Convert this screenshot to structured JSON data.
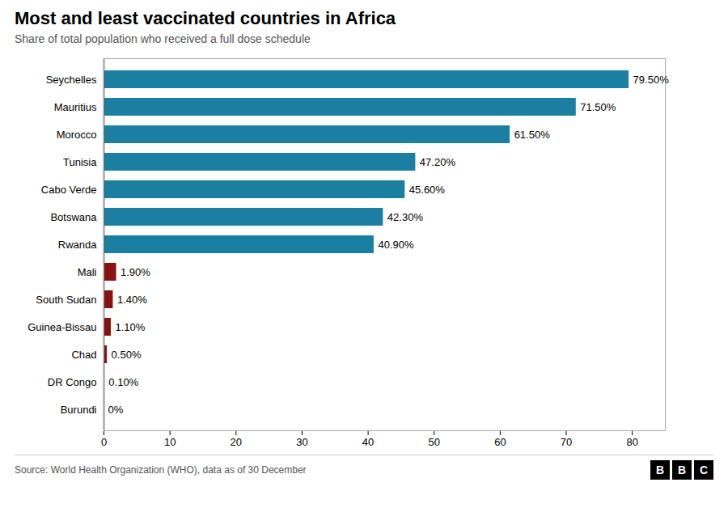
{
  "chart_data": {
    "type": "bar",
    "orientation": "horizontal",
    "title": "Most and least vaccinated countries in Africa",
    "subtitle": "Share of total population who received a full dose schedule",
    "source": "Source: World Health Organization (WHO), data as of 30 December",
    "logo": "BBC",
    "categories": [
      "Seychelles",
      "Mauritius",
      "Morocco",
      "Tunisia",
      "Cabo Verde",
      "Botswana",
      "Rwanda",
      "Mali",
      "South Sudan",
      "Guinea-Bissau",
      "Chad",
      "DR Congo",
      "Burundi"
    ],
    "values": [
      79.5,
      71.5,
      61.5,
      47.2,
      45.6,
      42.3,
      40.9,
      1.9,
      1.4,
      1.1,
      0.5,
      0.1,
      0
    ],
    "value_labels": [
      "79.50%",
      "71.50%",
      "61.50%",
      "47.20%",
      "45.60%",
      "42.30%",
      "40.90%",
      "1.90%",
      "1.40%",
      "1.10%",
      "0.50%",
      "0.10%",
      "0%"
    ],
    "data_labels": true,
    "colors": [
      "#1a7fa0",
      "#1a7fa0",
      "#1a7fa0",
      "#1a7fa0",
      "#1a7fa0",
      "#1a7fa0",
      "#1a7fa0",
      "#8b1010",
      "#8b1010",
      "#8b1010",
      "#8b1010",
      "#8b1010",
      "#8b1010"
    ],
    "xlim": [
      0,
      85
    ],
    "xticks": [
      0,
      10,
      20,
      30,
      40,
      50,
      60,
      70,
      80
    ],
    "grid": false
  }
}
